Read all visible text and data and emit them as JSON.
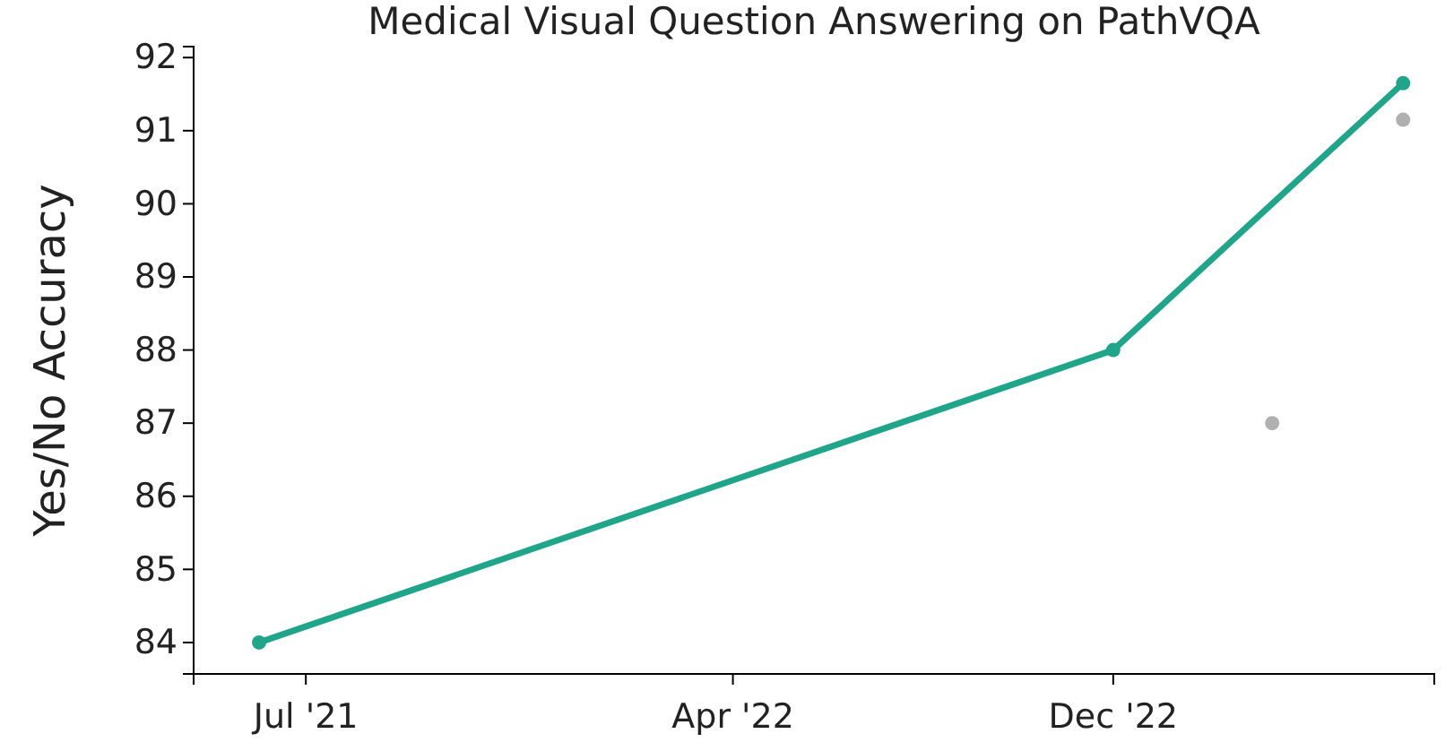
{
  "chart_data": {
    "type": "line",
    "title": "Medical Visual Question Answering on PathVQA",
    "ylabel": "Yes/No Accuracy",
    "xlim": [
      "2021-04-20",
      "2023-06-25"
    ],
    "ylim": [
      83.57,
      92.15
    ],
    "xticks": [
      {
        "value": "2021-07-01",
        "label": "Jul '21"
      },
      {
        "value": "2022-04-01",
        "label": "Apr '22"
      },
      {
        "value": "2022-12-01",
        "label": "Dec '22"
      }
    ],
    "yticks": [
      84,
      85,
      86,
      87,
      88,
      89,
      90,
      91,
      92
    ],
    "grid": false,
    "marker": "circle",
    "line_style": "solid",
    "series": [
      {
        "type": "line",
        "color": "#21a58a",
        "x": [
          "2021-06-01",
          "2022-12-01",
          "2023-06-05"
        ],
        "values": [
          84.0,
          88.0,
          91.65
        ]
      },
      {
        "type": "scatter",
        "color": "#b0b0b0",
        "x": [
          "2023-03-13",
          "2023-06-05"
        ],
        "values": [
          87.0,
          91.15
        ]
      }
    ]
  }
}
